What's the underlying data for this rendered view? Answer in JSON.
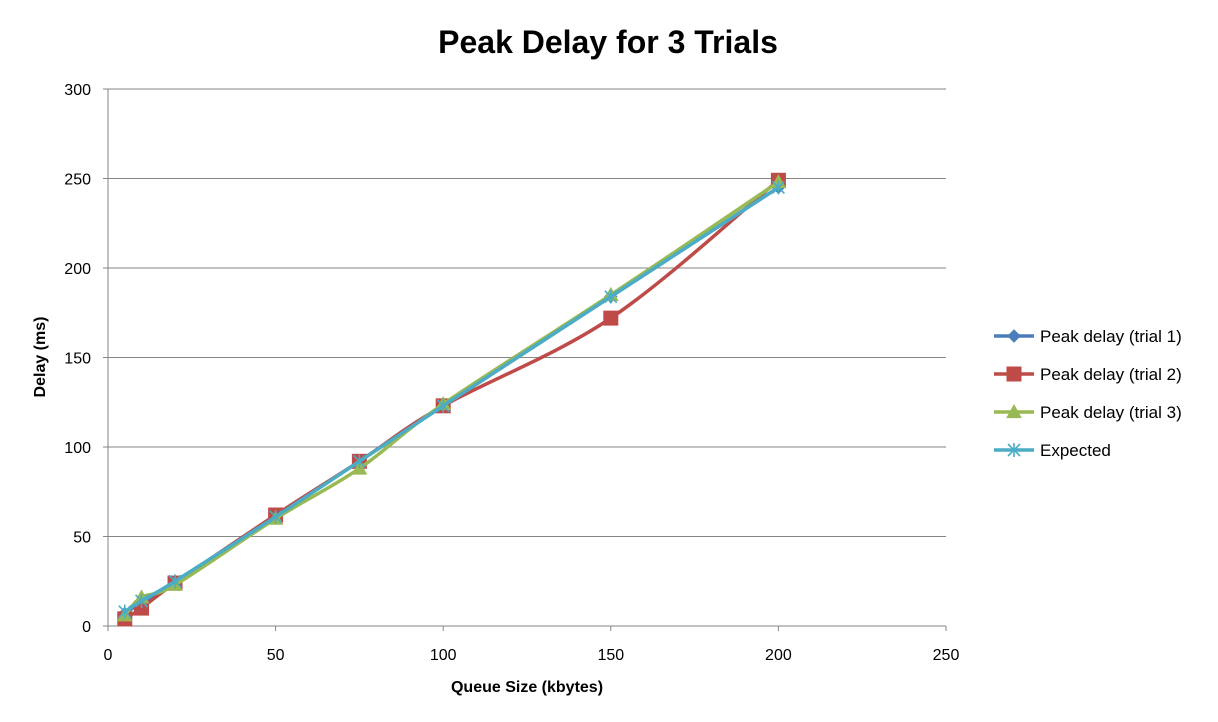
{
  "chart_data": {
    "type": "line",
    "title": "Peak Delay for 3 Trials",
    "xlabel": "Queue Size (kbytes)",
    "ylabel": "Delay (ms)",
    "xlim": [
      0,
      250
    ],
    "ylim": [
      0,
      300
    ],
    "xticks": [
      0,
      50,
      100,
      150,
      200,
      250
    ],
    "yticks": [
      0,
      50,
      100,
      150,
      200,
      250,
      300
    ],
    "grid": "horizontal",
    "legend_position": "right",
    "series": [
      {
        "name": "Peak delay (trial 1)",
        "color": "#4A7EBB",
        "marker": "diamond",
        "x": [
          5,
          10,
          20,
          50,
          75,
          100,
          150,
          200
        ],
        "y": [
          7,
          13,
          24,
          61,
          92,
          123,
          184,
          245
        ]
      },
      {
        "name": "Peak delay (trial 2)",
        "color": "#BE4B48",
        "marker": "square",
        "x": [
          5,
          10,
          20,
          50,
          75,
          100,
          150,
          200
        ],
        "y": [
          4,
          10,
          24,
          62,
          92,
          123,
          172,
          249
        ]
      },
      {
        "name": "Peak delay (trial 3)",
        "color": "#98B954",
        "marker": "triangle",
        "x": [
          5,
          10,
          20,
          50,
          75,
          100,
          150,
          200
        ],
        "y": [
          6,
          16,
          23,
          60,
          88,
          124,
          185,
          248
        ]
      },
      {
        "name": "Expected",
        "color": "#4BACC6",
        "marker": "asterisk",
        "x": [
          5,
          10,
          20,
          50,
          75,
          100,
          150,
          200
        ],
        "y": [
          8,
          14,
          25,
          61,
          92,
          123,
          184,
          245
        ]
      }
    ]
  }
}
